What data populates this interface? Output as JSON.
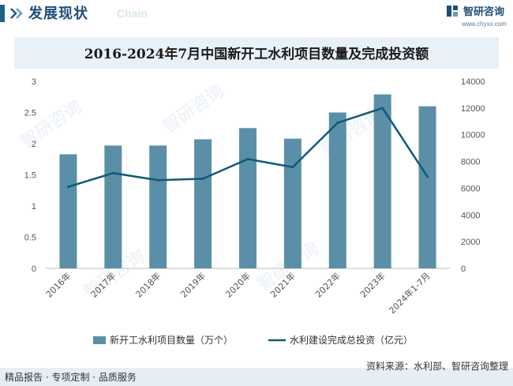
{
  "header": {
    "title": "发展现状",
    "title_en": "Chain",
    "brand_name": "智研咨询",
    "brand_url": "www.chyxx.com"
  },
  "watermark": "智研咨询",
  "footer": {
    "left": "精品报告 · 专项定制 · 品质服务",
    "right": "资料来源：水利部、智研咨询整理"
  },
  "colors": {
    "bar": "#5b8fa8",
    "line": "#0f5a78",
    "accent": "#1f4e79",
    "title_bg": "#e9f1f8"
  },
  "chart_data": {
    "type": "bar",
    "title": "2016-2024年7月中国新开工水利项目数量及完成投资额",
    "categories": [
      "2016年",
      "2017年",
      "2018年",
      "2019年",
      "2020年",
      "2021年",
      "2022年",
      "2023年",
      "2024年1-7月"
    ],
    "series": [
      {
        "name": "新开工水利项目数量（万个）",
        "type": "bar",
        "axis": "left",
        "values": [
          1.83,
          1.97,
          1.97,
          2.07,
          2.25,
          2.08,
          2.5,
          2.79,
          2.6
        ]
      },
      {
        "name": "水利建设完成总投资（亿元）",
        "type": "line",
        "axis": "right",
        "values": [
          6100,
          7132,
          6603,
          6712,
          8182,
          7576,
          10893,
          11996,
          6866
        ]
      }
    ],
    "y_left": {
      "min": 0,
      "max": 3,
      "ticks": [
        "0",
        "0.5",
        "1",
        "1.5",
        "2",
        "2.5",
        "3"
      ]
    },
    "y_right": {
      "min": 0,
      "max": 14000,
      "ticks": [
        "0",
        "2000",
        "4000",
        "6000",
        "8000",
        "10000",
        "12000",
        "14000"
      ]
    },
    "grid": false,
    "legend": "bottom"
  }
}
